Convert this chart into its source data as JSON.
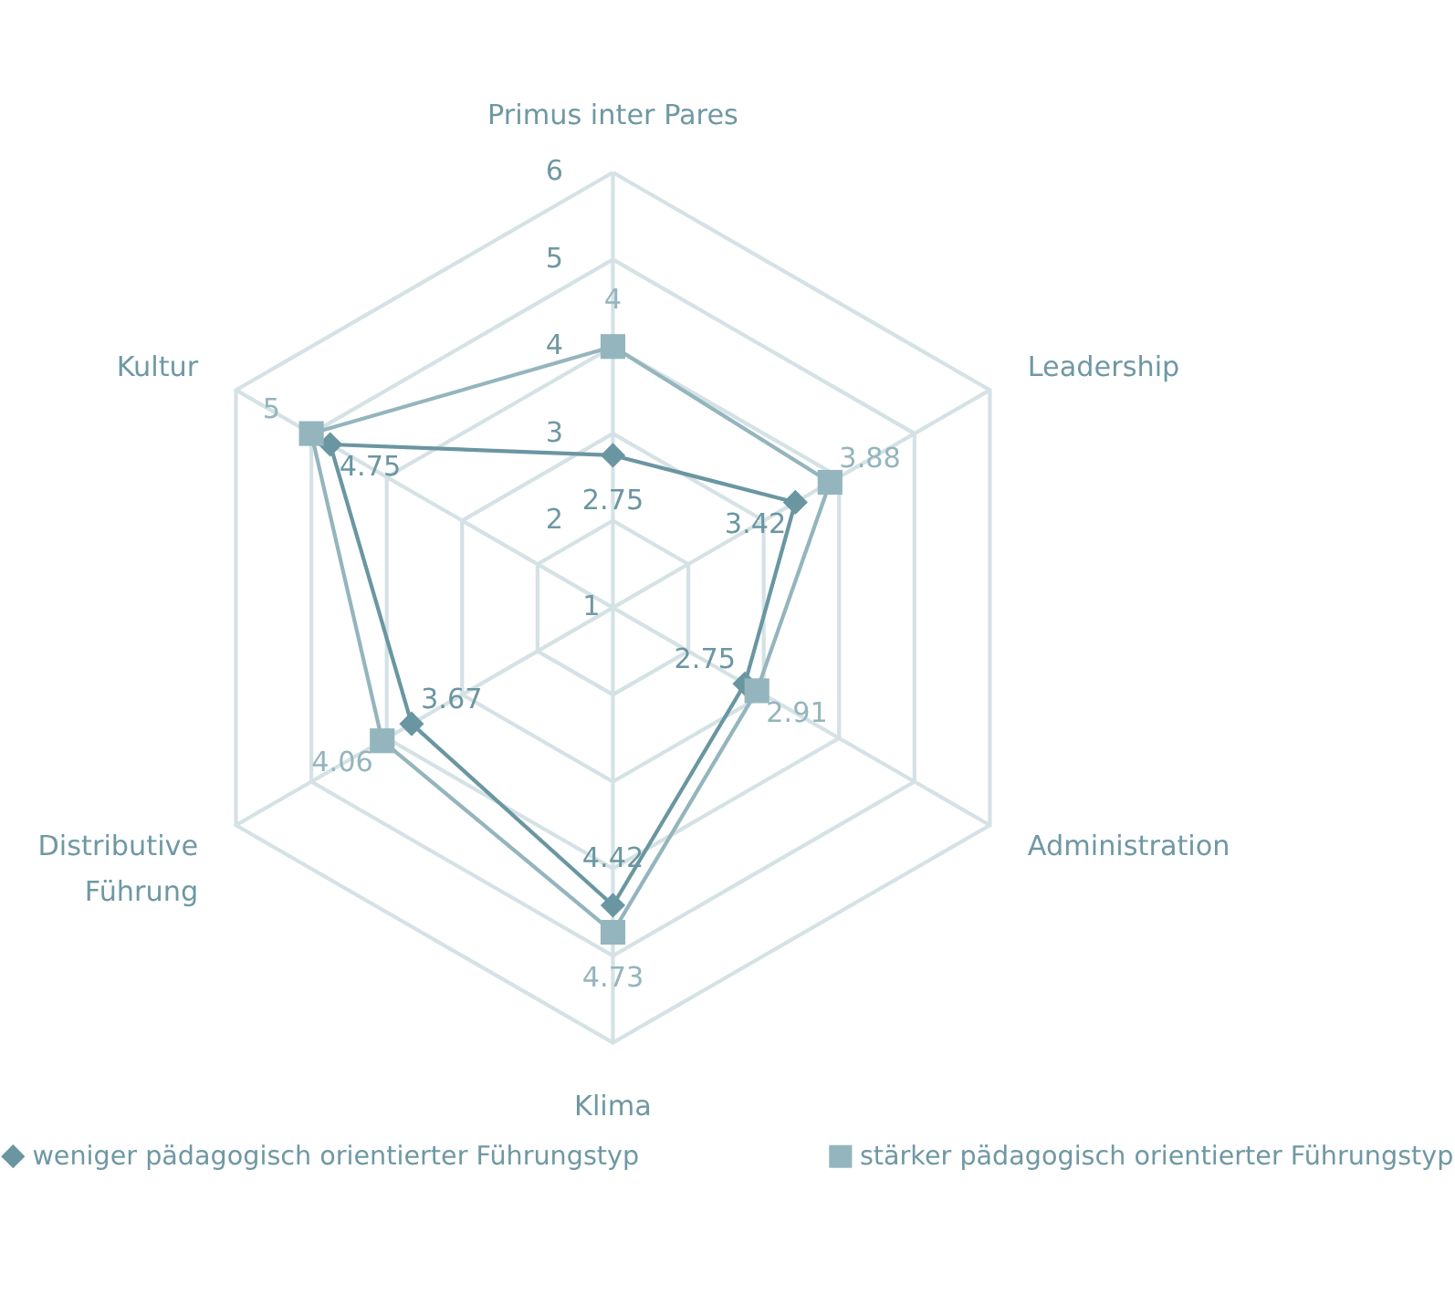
{
  "chart_data": {
    "type": "radar",
    "categories": [
      "Primus inter Pares",
      "Leadership",
      "Administration",
      "Klima",
      "Distributive Führung",
      "Kultur"
    ],
    "ylim": [
      1,
      6
    ],
    "yticks": [
      1,
      2,
      3,
      4,
      5,
      6
    ],
    "grid": true,
    "legend": "bottom",
    "data_labels": true,
    "series": [
      {
        "name": "weniger pädagogisch orientierter Führungstyp",
        "color": "#6a96a1",
        "marker": "diamond",
        "values": [
          2.75,
          3.42,
          2.75,
          4.42,
          3.67,
          4.75
        ]
      },
      {
        "name": "stärker pädagogisch orientierter Führungstyp",
        "color": "#94b5bd",
        "marker": "square",
        "values": [
          4,
          3.88,
          2.91,
          4.73,
          4.06,
          5
        ]
      }
    ]
  }
}
